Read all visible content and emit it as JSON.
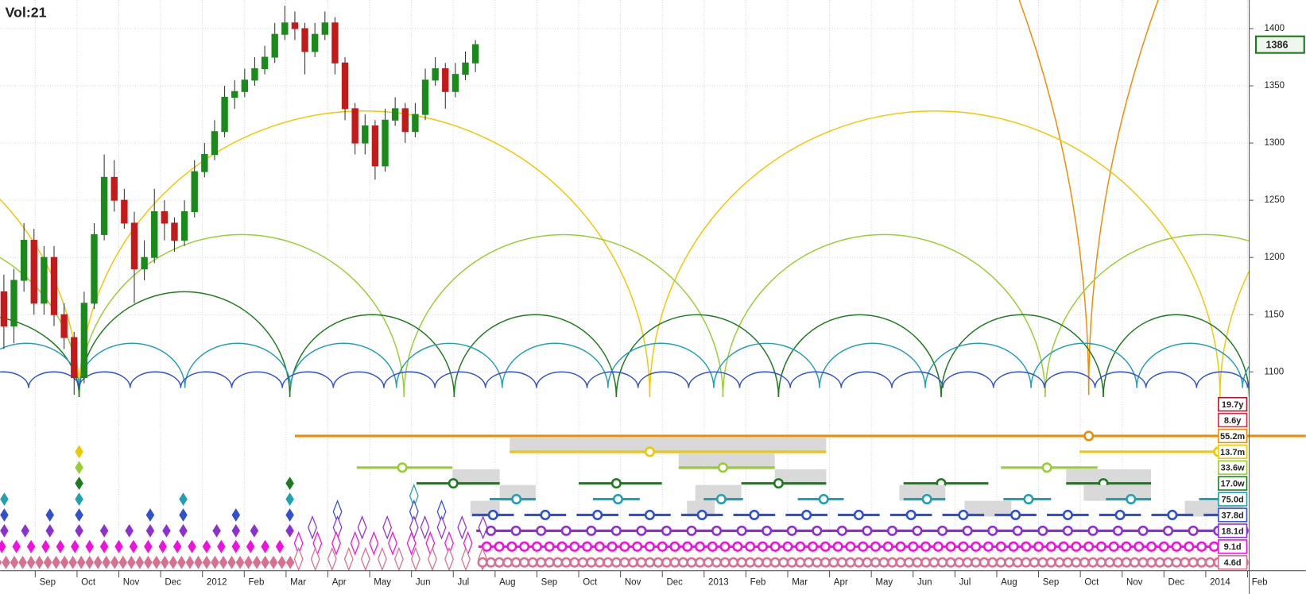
{
  "chart_data": {
    "type": "candlestick",
    "title": "Vol:21",
    "x": [
      0.25,
      0.49,
      0.73,
      0.97,
      1.21,
      1.45,
      1.69,
      1.93,
      2.17,
      2.41,
      2.65,
      2.89,
      3.13,
      3.37,
      3.61,
      3.85,
      4.09,
      4.33,
      4.57,
      4.81,
      5.05,
      5.29,
      5.53,
      5.77,
      6.01,
      6.25,
      6.49,
      6.73,
      6.97,
      7.21,
      7.45,
      7.69,
      7.93,
      8.17,
      8.41,
      8.65,
      8.89,
      9.13,
      9.37,
      9.61,
      9.85,
      10.09,
      10.33,
      10.57,
      10.81,
      11.05,
      11.29,
      11.53
    ],
    "open": [
      1170,
      1140,
      1180,
      1215,
      1160,
      1200,
      1150,
      1130,
      1095,
      1160,
      1220,
      1270,
      1250,
      1230,
      1190,
      1200,
      1240,
      1230,
      1215,
      1240,
      1275,
      1290,
      1310,
      1340,
      1345,
      1355,
      1365,
      1375,
      1395,
      1405,
      1400,
      1380,
      1395,
      1405,
      1370,
      1330,
      1300,
      1315,
      1280,
      1320,
      1330,
      1310,
      1325,
      1355,
      1365,
      1345,
      1360,
      1370
    ],
    "high": [
      1185,
      1190,
      1230,
      1225,
      1210,
      1210,
      1160,
      1135,
      1170,
      1230,
      1290,
      1285,
      1260,
      1240,
      1215,
      1260,
      1250,
      1235,
      1250,
      1285,
      1300,
      1320,
      1350,
      1355,
      1365,
      1375,
      1385,
      1405,
      1420,
      1415,
      1405,
      1405,
      1415,
      1410,
      1375,
      1335,
      1325,
      1320,
      1330,
      1340,
      1335,
      1335,
      1365,
      1375,
      1370,
      1370,
      1380,
      1390
    ],
    "low": [
      1120,
      1125,
      1170,
      1150,
      1150,
      1140,
      1120,
      1080,
      1090,
      1155,
      1215,
      1240,
      1225,
      1160,
      1180,
      1195,
      1215,
      1205,
      1210,
      1235,
      1270,
      1285,
      1305,
      1330,
      1340,
      1350,
      1360,
      1370,
      1390,
      1390,
      1360,
      1375,
      1390,
      1360,
      1320,
      1290,
      1290,
      1268,
      1275,
      1315,
      1300,
      1305,
      1320,
      1350,
      1330,
      1340,
      1355,
      1362
    ],
    "close": [
      1140,
      1180,
      1215,
      1160,
      1200,
      1150,
      1130,
      1095,
      1160,
      1220,
      1270,
      1250,
      1230,
      1190,
      1200,
      1240,
      1230,
      1215,
      1240,
      1275,
      1290,
      1310,
      1340,
      1345,
      1355,
      1365,
      1375,
      1395,
      1405,
      1400,
      1380,
      1395,
      1405,
      1370,
      1330,
      1300,
      1315,
      1280,
      1320,
      1330,
      1310,
      1325,
      1355,
      1365,
      1345,
      1360,
      1370,
      1386
    ],
    "up_color": "#1a8a1a",
    "down_color": "#c41a1a",
    "title_color": "#d07a2a",
    "xlim": [
      0.16,
      30.04
    ],
    "ylim": [
      1076,
      1425
    ],
    "yticks": [
      1100,
      1150,
      1200,
      1250,
      1300,
      1350,
      1400
    ],
    "xticks": [
      {
        "value": 1,
        "label": "Sep"
      },
      {
        "value": 2,
        "label": "Oct"
      },
      {
        "value": 3,
        "label": "Nov"
      },
      {
        "value": 4,
        "label": "Dec"
      },
      {
        "value": 5,
        "label": "2012"
      },
      {
        "value": 6,
        "label": "Feb"
      },
      {
        "value": 7,
        "label": "Mar"
      },
      {
        "value": 8,
        "label": "Apr"
      },
      {
        "value": 9,
        "label": "May"
      },
      {
        "value": 10,
        "label": "Jun"
      },
      {
        "value": 11,
        "label": "Jul"
      },
      {
        "value": 12,
        "label": "Aug"
      },
      {
        "value": 13,
        "label": "Sep"
      },
      {
        "value": 14,
        "label": "Oct"
      },
      {
        "value": 15,
        "label": "Nov"
      },
      {
        "value": 16,
        "label": "Dec"
      },
      {
        "value": 17,
        "label": "2013"
      },
      {
        "value": 18,
        "label": "Feb"
      },
      {
        "value": 19,
        "label": "Mar"
      },
      {
        "value": 20,
        "label": "Apr"
      },
      {
        "value": 21,
        "label": "May"
      },
      {
        "value": 22,
        "label": "Jun"
      },
      {
        "value": 23,
        "label": "Jul"
      },
      {
        "value": 24,
        "label": "Aug"
      },
      {
        "value": 25,
        "label": "Sep"
      },
      {
        "value": 26,
        "label": "Oct"
      },
      {
        "value": 27,
        "label": "Nov"
      },
      {
        "value": 28,
        "label": "Dec"
      },
      {
        "value": 29,
        "label": "2014"
      },
      {
        "value": 30,
        "label": "Feb"
      }
    ],
    "grid": true,
    "cycles": [
      {
        "name": "19.7y",
        "color": "#b4142c"
      },
      {
        "name": "8.6y",
        "color": "#e0283c"
      },
      {
        "name": "55.2m",
        "color": "#f08c00",
        "troughs": [
          -29,
          26.2,
          81.4
        ],
        "peaks": [
          2090,
          2090
        ],
        "low": 1080,
        "lines": [
          [
            7.21,
            31.4
          ]
        ],
        "markers": [
          26.2
        ]
      },
      {
        "name": "13.7m",
        "color": "#f0c800",
        "troughs": [
          -11.6,
          2.05,
          15.7,
          29.34,
          43
        ],
        "peaks": [
          1328,
          1328,
          1328,
          1328
        ],
        "low": 1078,
        "lines": [
          [
            12.35,
            19.92
          ],
          [
            25.98,
            29.3
          ]
        ],
        "markers": [
          15.7,
          29.3
        ],
        "boxes": [
          [
            12.35,
            19.92
          ]
        ],
        "diamonds": [
          2.05
        ]
      },
      {
        "name": "33.6w",
        "color": "#9acd32",
        "troughs": [
          -5.72,
          2.05,
          9.82,
          17.45,
          25.16,
          32.8
        ],
        "peaks": [
          1220,
          1220,
          1220,
          1220,
          1220
        ],
        "low": 1078,
        "lines": [
          [
            8.69,
            10.98
          ],
          [
            16.39,
            18.69
          ],
          [
            24.1,
            26.41
          ]
        ],
        "markers": [
          9.78,
          17.45,
          25.2
        ],
        "boxes": [
          [
            16.39,
            18.69
          ]
        ],
        "diamonds": [
          2.05
        ]
      },
      {
        "name": "17.0w",
        "color": "#1e7a1e",
        "troughs": [
          -3.03,
          2.05,
          7.09,
          11.02,
          14.9,
          18.78,
          22.67,
          26.55,
          30.04
        ],
        "peaks": [
          1150,
          1170,
          1150,
          1150,
          1150,
          1150,
          1150,
          1150
        ],
        "low": 1078,
        "lines": [
          [
            10.12,
            12.11
          ],
          [
            14.0,
            15.99
          ],
          [
            17.89,
            19.92
          ],
          [
            21.77,
            23.8
          ],
          [
            25.66,
            27.69
          ]
        ],
        "markers": [
          11.0,
          14.9,
          18.78,
          22.67,
          26.55
        ],
        "boxes": [
          [
            10.98,
            12.11
          ],
          [
            18.69,
            19.92
          ],
          [
            25.66,
            27.69
          ]
        ],
        "diamonds": [
          2.05,
          7.09
        ]
      },
      {
        "name": "75.0d",
        "color": "#20a0b0",
        "troughs": [
          -0.48,
          2.05,
          4.58,
          7.11,
          9.64,
          12.17,
          14.7,
          17.23,
          19.76,
          22.29,
          24.82,
          27.35,
          29.88,
          32.41
        ],
        "peaks": [
          1125,
          1125,
          1125,
          1125,
          1125,
          1125,
          1125,
          1125,
          1125,
          1125,
          1125,
          1125,
          1125
        ],
        "low": 1086,
        "lines": [
          [
            11.87,
            12.97
          ],
          [
            14.34,
            15.46
          ],
          [
            16.99,
            17.93
          ],
          [
            19.24,
            20.34
          ],
          [
            21.77,
            22.77
          ],
          [
            24.16,
            25.3
          ],
          [
            26.61,
            27.69
          ],
          [
            28.84,
            29.96
          ]
        ],
        "markers": [
          12.51,
          14.94,
          17.41,
          19.86,
          22.33,
          24.76,
          27.21,
          29.4
        ],
        "boxes": [
          [
            12.11,
            12.97
          ],
          [
            16.79,
            17.89
          ],
          [
            21.67,
            22.77
          ],
          [
            26.08,
            27.69
          ]
        ],
        "diamonds": [
          0.26,
          2.05,
          4.54,
          7.09
        ],
        "hollow_diamonds": [
          10.06
        ]
      },
      {
        "name": "37.8d",
        "color": "#3050d0",
        "troughs": [
          -0.38,
          0.84,
          2.05,
          3.27,
          4.48,
          5.7,
          6.91,
          8.13,
          9.34,
          10.56,
          11.77,
          12.99,
          14.2,
          15.42,
          16.63,
          17.85,
          19.06,
          20.28,
          21.49,
          22.71,
          23.92,
          25.14,
          26.35,
          27.57,
          28.78,
          30.0,
          31.22
        ],
        "peaks": [
          1100,
          1100,
          1100,
          1100,
          1100,
          1100,
          1100,
          1100,
          1100,
          1100,
          1100,
          1100,
          1100,
          1100,
          1100,
          1100,
          1100,
          1100,
          1100,
          1100,
          1100,
          1100,
          1100,
          1100,
          1100,
          1100
        ],
        "low": 1086,
        "lines": [
          [
            11.45,
            12.45
          ],
          [
            12.7,
            13.7
          ],
          [
            13.95,
            14.95
          ],
          [
            15.2,
            16.2
          ],
          [
            16.45,
            17.45
          ],
          [
            17.7,
            18.7
          ],
          [
            18.95,
            19.95
          ],
          [
            20.2,
            21.2
          ],
          [
            21.45,
            22.45
          ],
          [
            22.7,
            23.7
          ],
          [
            23.95,
            24.95
          ],
          [
            25.2,
            26.2
          ],
          [
            26.45,
            27.45
          ],
          [
            27.7,
            28.7
          ],
          [
            28.95,
            29.95
          ]
        ],
        "markers": [
          11.95,
          13.2,
          14.45,
          15.7,
          16.95,
          18.2,
          19.45,
          20.7,
          21.95,
          23.2,
          24.45,
          25.7,
          26.95,
          28.2,
          29.45
        ],
        "boxes": [
          [
            11.41,
            12.11
          ],
          [
            16.59,
            17.25
          ],
          [
            23.23,
            24.35
          ],
          [
            28.5,
            29.9
          ]
        ],
        "diamonds": [
          0.26,
          1.35,
          2.05,
          3.75,
          4.54,
          5.8,
          7.09
        ],
        "hollow_diamonds": [
          8.23,
          10.06,
          10.72
        ]
      },
      {
        "name": "18.1d",
        "color": "#8c30d0",
        "lines": [
          [
            11.55,
            29.95
          ]
        ],
        "markers": [
          11.9,
          12.5,
          13.1,
          13.7,
          14.3,
          14.9,
          15.5,
          16.1,
          16.7,
          17.3,
          17.9,
          18.5,
          19.1,
          19.7,
          20.3,
          20.9,
          21.5,
          22.1,
          22.7,
          23.3,
          23.9,
          24.5,
          25.1,
          25.7,
          26.3,
          26.9,
          27.5,
          28.1,
          28.7,
          29.3,
          29.9
        ],
        "diamonds": [
          0.26,
          0.76,
          1.35,
          2.05,
          2.65,
          3.25,
          3.75,
          4.14,
          4.54,
          5.34,
          5.8,
          6.24,
          7.09
        ],
        "hollow_diamonds": [
          7.63,
          8.23,
          8.82,
          9.42,
          10.06,
          10.32,
          10.72,
          11.21,
          11.71
        ]
      },
      {
        "name": "9.1d",
        "color": "#f010e0",
        "lines": [
          [
            11.6,
            29.95
          ]
        ],
        "markers": [
          11.8,
          12.1,
          12.4,
          12.7,
          13,
          13.3,
          13.6,
          13.9,
          14.2,
          14.5,
          14.8,
          15.1,
          15.4,
          15.7,
          16,
          16.3,
          16.6,
          16.9,
          17.2,
          17.5,
          17.8,
          18.1,
          18.4,
          18.7,
          19,
          19.3,
          19.6,
          19.9,
          20.2,
          20.5,
          20.8,
          21.1,
          21.4,
          21.7,
          22,
          22.3,
          22.6,
          22.9,
          23.2,
          23.5,
          23.8,
          24.1,
          24.4,
          24.7,
          25,
          25.3,
          25.6,
          25.9,
          26.2,
          26.5,
          26.8,
          27.1,
          27.4,
          27.7,
          28,
          28.3,
          28.6,
          28.9,
          29.2,
          29.5,
          29.8
        ],
        "diamonds": [
          0.2,
          0.55,
          0.9,
          1.25,
          1.6,
          1.95,
          2.3,
          2.65,
          3.0,
          3.35,
          3.7,
          4.05,
          4.4,
          4.75,
          5.1,
          5.45,
          5.8,
          6.15,
          6.5,
          6.85
        ],
        "hollow_diamonds": [
          7.3,
          7.75,
          8.2,
          8.65,
          9.1,
          9.55,
          10.0,
          10.45,
          10.9,
          11.35
        ]
      },
      {
        "name": "4.6d",
        "color": "#d87090",
        "markers": [
          11.7,
          11.9,
          12.1,
          12.3,
          12.5,
          12.7,
          12.9,
          13.1,
          13.3,
          13.5,
          13.7,
          13.9,
          14.1,
          14.3,
          14.5,
          14.7,
          14.9,
          15.1,
          15.3,
          15.5,
          15.7,
          15.9,
          16.1,
          16.3,
          16.5,
          16.7,
          16.9,
          17.1,
          17.3,
          17.5,
          17.7,
          17.9,
          18.1,
          18.3,
          18.5,
          18.7,
          18.9,
          19.1,
          19.3,
          19.5,
          19.7,
          19.9,
          20.1,
          20.3,
          20.5,
          20.7,
          20.9,
          21.1,
          21.3,
          21.5,
          21.7,
          21.9,
          22.1,
          22.3,
          22.5,
          22.7,
          22.9,
          23.1,
          23.3,
          23.5,
          23.7,
          23.9,
          24.1,
          24.3,
          24.5,
          24.7,
          24.9,
          25.1,
          25.3,
          25.5,
          25.7,
          25.9,
          26.1,
          26.3,
          26.5,
          26.7,
          26.9,
          27.1,
          27.3,
          27.5,
          27.7,
          27.9,
          28.1,
          28.3,
          28.5,
          28.7,
          28.9,
          29.1,
          29.3,
          29.5,
          29.7,
          29.9
        ],
        "diamonds": [
          0.1,
          0.3,
          0.5,
          0.7,
          0.9,
          1.1,
          1.3,
          1.5,
          1.7,
          1.9,
          2.1,
          2.3,
          2.5,
          2.7,
          2.9,
          3.1,
          3.3,
          3.5,
          3.7,
          3.9,
          4.1,
          4.3,
          4.5,
          4.7,
          4.9,
          5.1,
          5.3,
          5.5,
          5.7,
          5.9,
          6.1,
          6.3,
          6.5,
          6.7,
          6.9,
          7.1
        ],
        "hollow_diamonds": [
          7.3,
          7.7,
          8.1,
          8.5,
          8.9,
          9.3,
          9.7,
          10.1,
          10.5,
          10.9,
          11.3,
          11.7
        ]
      }
    ]
  }
}
